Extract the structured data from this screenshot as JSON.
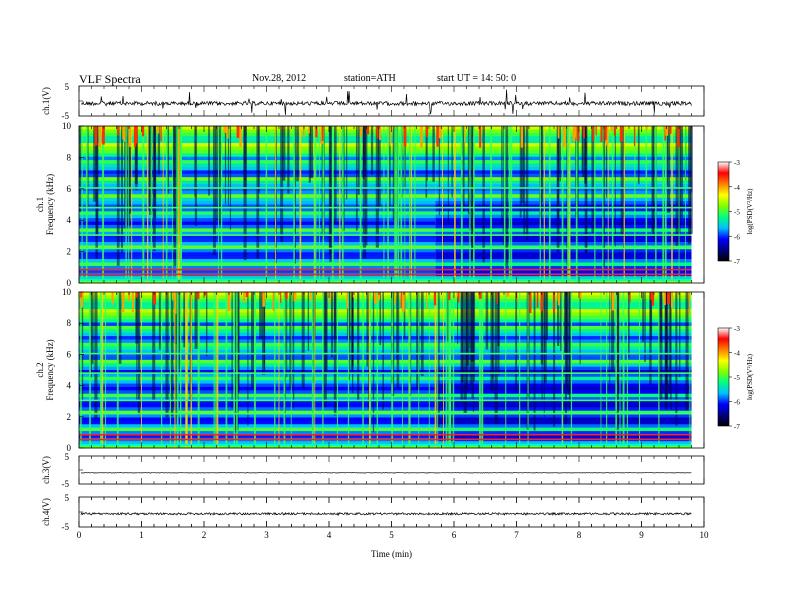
{
  "header": {
    "title": "VLF  Spectra",
    "date": "Nov.28, 2012",
    "station": "station=ATH",
    "start": "start  UT =   14: 50: 0"
  },
  "chart_data": [
    {
      "type": "line",
      "panel": "ch1-waveform",
      "ylabel": "ch.1(V)",
      "ylim": [
        -5,
        5
      ],
      "yticks": [
        "5",
        "-5"
      ],
      "baseline_value": -0.8,
      "color": "#000000"
    },
    {
      "type": "heatmap",
      "panel": "ch1-spectrogram",
      "ylabel_top": "ch.1",
      "ylabel": "Frequency  (kHz)",
      "ylim": [
        0,
        10
      ],
      "yticks": [
        "0",
        "2",
        "4",
        "6",
        "8",
        "10"
      ],
      "colorbar": {
        "label": "log(PSD(V²/Hz)",
        "ticks": [
          "-3",
          "-4",
          "-5",
          "-6",
          "-7"
        ],
        "range": [
          -7,
          -3
        ],
        "colors": [
          "#000000",
          "#000080",
          "#0000ff",
          "#00bfff",
          "#00ff80",
          "#80ff00",
          "#ffff00",
          "#ff8000",
          "#ff0000",
          "#ffffff"
        ]
      },
      "step_time_min": 5.7
    },
    {
      "type": "heatmap",
      "panel": "ch2-spectrogram",
      "ylabel_top": "ch.2",
      "ylabel": "Frequency  (kHz)",
      "ylim": [
        0,
        10
      ],
      "yticks": [
        "0",
        "2",
        "4",
        "6",
        "8",
        "10"
      ],
      "colorbar": {
        "label": "log(PSD(V²/Hz)",
        "ticks": [
          "-3",
          "-4",
          "-5",
          "-6",
          "-7"
        ],
        "range": [
          -7,
          -3
        ]
      },
      "step_time_min": 5.7
    },
    {
      "type": "line",
      "panel": "ch3-waveform",
      "ylabel": "ch.3(V)",
      "ylim": [
        -5,
        5
      ],
      "yticks": [
        "5",
        "-5"
      ],
      "baseline_value": -1.0,
      "color": "#000000"
    },
    {
      "type": "line",
      "panel": "ch4-waveform",
      "ylabel": "ch.4(V)",
      "ylim": [
        -5,
        5
      ],
      "yticks": [
        "5",
        "-5"
      ],
      "baseline_value": -0.6,
      "color": "#000000"
    }
  ],
  "xaxis": {
    "label": "Time  (min)",
    "xlim": [
      0,
      10
    ],
    "ticks": [
      "0",
      "1",
      "2",
      "3",
      "4",
      "5",
      "6",
      "7",
      "8",
      "9",
      "10"
    ],
    "data_end": 9.8
  }
}
